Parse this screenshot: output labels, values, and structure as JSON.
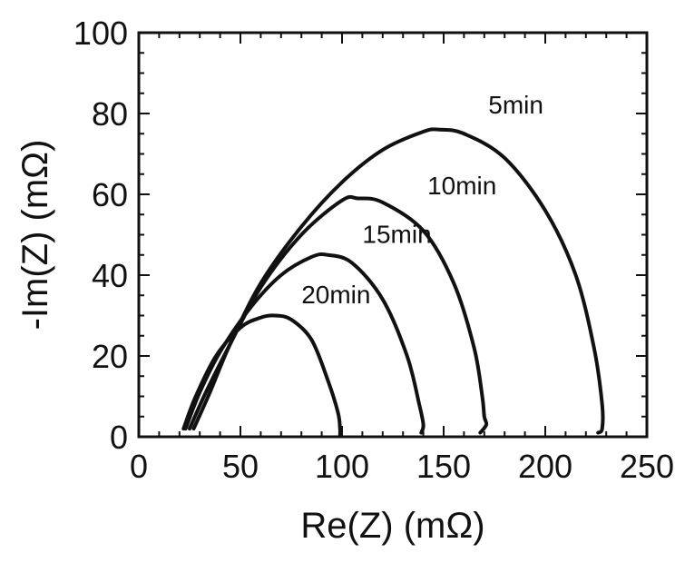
{
  "chart_data": {
    "type": "line",
    "title": "",
    "xlabel": "Re(Z) (mΩ)",
    "ylabel": "-Im(Z) (mΩ)",
    "xlim": [
      0,
      250
    ],
    "ylim": [
      0,
      100
    ],
    "xticks": [
      0,
      50,
      100,
      150,
      200,
      250
    ],
    "yticks": [
      0,
      20,
      40,
      60,
      80,
      100
    ],
    "x_tick_labels": [
      "0",
      "50",
      "100",
      "150",
      "200",
      "250"
    ],
    "y_tick_labels": [
      "0",
      "20",
      "40",
      "60",
      "80",
      "100"
    ],
    "grid": false,
    "series": [
      {
        "name": "5min",
        "x": [
          27,
          35,
          45,
          60,
          80,
          100,
          120,
          140,
          148,
          160,
          180,
          200,
          215,
          224,
          228,
          228,
          226
        ],
        "y": [
          2,
          11,
          23,
          38,
          52,
          63,
          71,
          75.5,
          76,
          75,
          69,
          56,
          40,
          22,
          8,
          2,
          1
        ]
      },
      {
        "name": "10min",
        "x": [
          25,
          33,
          45,
          60,
          80,
          100,
          108,
          120,
          140,
          155,
          165,
          169,
          170,
          171,
          168
        ],
        "y": [
          2,
          11,
          23,
          37,
          50,
          58.5,
          59,
          58,
          51,
          38,
          22,
          10,
          5,
          3,
          1
        ]
      },
      {
        "name": "15min",
        "x": [
          23,
          30,
          40,
          55,
          70,
          85,
          93,
          105,
          120,
          132,
          138,
          140,
          139
        ],
        "y": [
          2,
          11,
          21,
          32,
          40,
          44.5,
          45,
          43,
          34,
          20,
          8,
          3,
          1
        ]
      },
      {
        "name": "20min",
        "x": [
          22,
          28,
          38,
          50,
          60,
          67,
          75,
          85,
          93,
          98,
          99,
          99
        ],
        "y": [
          2,
          10,
          20,
          27,
          29.5,
          30,
          29,
          24,
          14,
          6,
          2,
          0.5
        ]
      }
    ],
    "annotations": [
      {
        "text": "5min",
        "x": 172,
        "y": 80
      },
      {
        "text": "10min",
        "x": 142,
        "y": 60
      },
      {
        "text": "15min",
        "x": 110,
        "y": 48
      },
      {
        "text": "20min",
        "x": 80,
        "y": 33
      }
    ]
  }
}
